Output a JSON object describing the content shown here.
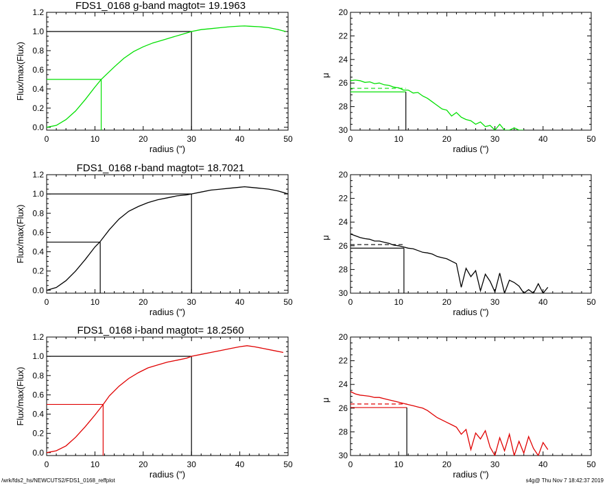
{
  "footer": {
    "path": "/wrk/fds2_hs/NEWCUTS2/FDS1_0168_reffplot",
    "stamp": "s4g@  Thu Nov  7 18:42:37 2019"
  },
  "colors": {
    "g": "#00e000",
    "r": "#000000",
    "i": "#e00000",
    "frame": "#000000"
  },
  "chart_data": [
    {
      "type": "line",
      "title": "FDS1_0168 g-band  magtot=     19.1963",
      "xlabel": "radius (\")",
      "ylabel": "Flux/max(Flux)",
      "xlim": [
        0,
        50
      ],
      "ylim": [
        -0.03,
        1.2
      ],
      "xticks": [
        "0",
        "10",
        "20",
        "30",
        "40",
        "50"
      ],
      "yticks": [
        "0.0",
        "0.2",
        "0.4",
        "0.6",
        "0.8",
        "1.0",
        "1.2"
      ],
      "series": [
        {
          "color": "#00e000",
          "x": [
            0,
            2,
            4,
            6,
            8,
            10,
            11.3,
            14,
            16,
            18,
            20,
            22,
            24,
            26,
            28,
            30,
            32,
            34,
            36,
            38,
            40,
            41,
            42,
            44,
            46,
            48,
            49.5
          ],
          "y": [
            0,
            0.02,
            0.08,
            0.17,
            0.29,
            0.42,
            0.5,
            0.63,
            0.72,
            0.79,
            0.84,
            0.88,
            0.91,
            0.94,
            0.97,
            1.0,
            1.02,
            1.03,
            1.04,
            1.05,
            1.056,
            1.058,
            1.055,
            1.05,
            1.04,
            1.02,
            1.0
          ]
        }
      ],
      "guides": {
        "r_half": 11.3,
        "r_total": 30,
        "y_half": 0.5,
        "y_total": 1.0
      }
    },
    {
      "type": "line",
      "xlabel": "radius (\")",
      "ylabel": "μ",
      "xlim": [
        0,
        50
      ],
      "ylim": [
        30,
        20
      ],
      "xticks": [
        "0",
        "10",
        "20",
        "30",
        "40",
        "50"
      ],
      "yticks": [
        "20",
        "22",
        "24",
        "26",
        "28",
        "30"
      ],
      "series": [
        {
          "color": "#00e000",
          "x": [
            0,
            1,
            2,
            3,
            4,
            5,
            6,
            7,
            8,
            9,
            10,
            11,
            12,
            13,
            14,
            15,
            16,
            17,
            18,
            19,
            20,
            21,
            22,
            23,
            24,
            25,
            26,
            27,
            28,
            29,
            30,
            31,
            32,
            33,
            34,
            35,
            36
          ],
          "y": [
            25.8,
            25.75,
            25.8,
            25.95,
            25.9,
            26.05,
            26.0,
            26.15,
            26.2,
            26.35,
            26.4,
            26.6,
            26.6,
            26.85,
            26.8,
            27.1,
            27.3,
            27.6,
            27.9,
            28.2,
            28.3,
            28.8,
            28.5,
            28.9,
            29.1,
            29.2,
            29.5,
            29.3,
            29.7,
            29.6,
            30.0,
            29.5,
            30.0,
            30.0,
            29.8,
            30.0,
            30.0
          ]
        }
      ],
      "guides": {
        "r_half": 11.5,
        "mu_eff": 26.75,
        "mu_mean": 26.45
      }
    },
    {
      "type": "line",
      "title": "FDS1_0168 r-band  magtot=     18.7021",
      "xlabel": "radius (\")",
      "ylabel": "Flux/max(Flux)",
      "xlim": [
        0,
        50
      ],
      "ylim": [
        -0.03,
        1.2
      ],
      "xticks": [
        "0",
        "10",
        "20",
        "30",
        "40",
        "50"
      ],
      "yticks": [
        "0.0",
        "0.2",
        "0.4",
        "0.6",
        "0.8",
        "1.0",
        "1.2"
      ],
      "series": [
        {
          "color": "#000000",
          "x": [
            0,
            2,
            4,
            6,
            8,
            10,
            11,
            13,
            15,
            17,
            19,
            21,
            23,
            25,
            27,
            29,
            30,
            32,
            34,
            36,
            38,
            40,
            41,
            42,
            44,
            46,
            48,
            50
          ],
          "y": [
            0,
            0.03,
            0.1,
            0.2,
            0.32,
            0.45,
            0.5,
            0.63,
            0.74,
            0.82,
            0.87,
            0.91,
            0.94,
            0.96,
            0.98,
            0.99,
            1.0,
            1.02,
            1.04,
            1.05,
            1.06,
            1.07,
            1.075,
            1.07,
            1.06,
            1.05,
            1.03,
            1.0
          ]
        }
      ],
      "guides": {
        "r_half": 11.1,
        "r_total": 30,
        "y_half": 0.5,
        "y_total": 1.0
      }
    },
    {
      "type": "line",
      "xlabel": "radius (\")",
      "ylabel": "μ",
      "xlim": [
        0,
        50
      ],
      "ylim": [
        30,
        20
      ],
      "xticks": [
        "0",
        "10",
        "20",
        "30",
        "40",
        "50"
      ],
      "yticks": [
        "20",
        "22",
        "24",
        "26",
        "28",
        "30"
      ],
      "series": [
        {
          "color": "#000000",
          "x": [
            0,
            1,
            2,
            3,
            4,
            5,
            6,
            7,
            8,
            9,
            10,
            11,
            12,
            13,
            14,
            15,
            16,
            17,
            18,
            19,
            20,
            21,
            22,
            23,
            24,
            25,
            26,
            27,
            28,
            29,
            30,
            31,
            32,
            33,
            34,
            35,
            36,
            37,
            38,
            39,
            40,
            41
          ],
          "y": [
            25.0,
            25.15,
            25.3,
            25.4,
            25.45,
            25.6,
            25.6,
            25.7,
            25.8,
            25.95,
            26.0,
            26.1,
            26.2,
            26.25,
            26.4,
            26.55,
            26.6,
            26.7,
            26.9,
            27.0,
            27.1,
            27.3,
            27.5,
            29.5,
            27.9,
            28.6,
            28.1,
            29.8,
            28.4,
            29.0,
            29.9,
            28.3,
            30.0,
            28.9,
            29.1,
            29.4,
            30.0,
            29.7,
            30.0,
            29.2,
            30.0,
            29.5
          ]
        }
      ],
      "guides": {
        "r_half": 11.1,
        "mu_eff": 26.2,
        "mu_mean": 25.9
      }
    },
    {
      "type": "line",
      "title": "FDS1_0168 i-band  magtot=     18.2560",
      "xlabel": "radius (\")",
      "ylabel": "Flux/max(Flux)",
      "xlim": [
        0,
        50
      ],
      "ylim": [
        -0.03,
        1.2
      ],
      "xticks": [
        "0",
        "10",
        "20",
        "30",
        "40",
        "50"
      ],
      "yticks": [
        "0.0",
        "0.2",
        "0.4",
        "0.6",
        "0.8",
        "1.0",
        "1.2"
      ],
      "series": [
        {
          "color": "#e00000",
          "x": [
            0,
            2,
            4,
            6,
            8,
            10,
            11.7,
            13,
            15,
            17,
            19,
            21,
            23,
            25,
            27,
            29,
            30,
            32,
            34,
            36,
            38,
            40,
            41.5,
            43,
            45,
            47,
            49
          ],
          "y": [
            0,
            0.02,
            0.07,
            0.16,
            0.27,
            0.39,
            0.5,
            0.59,
            0.69,
            0.77,
            0.83,
            0.88,
            0.91,
            0.94,
            0.96,
            0.98,
            1.0,
            1.02,
            1.04,
            1.06,
            1.08,
            1.1,
            1.11,
            1.1,
            1.08,
            1.06,
            1.04
          ]
        }
      ],
      "guides": {
        "r_half": 11.7,
        "r_total": 30,
        "y_half": 0.5,
        "y_total": 1.0
      }
    },
    {
      "type": "line",
      "xlabel": "radius (\")",
      "ylabel": "μ",
      "xlim": [
        0,
        50
      ],
      "ylim": [
        30,
        20
      ],
      "xticks": [
        "0",
        "10",
        "20",
        "30",
        "40",
        "50"
      ],
      "yticks": [
        "20",
        "22",
        "24",
        "26",
        "28",
        "30"
      ],
      "series": [
        {
          "color": "#e00000",
          "x": [
            0,
            1,
            2,
            3,
            4,
            5,
            6,
            7,
            8,
            9,
            10,
            11,
            12,
            13,
            14,
            15,
            16,
            17,
            18,
            19,
            20,
            21,
            22,
            23,
            24,
            25,
            26,
            27,
            28,
            29,
            30,
            31,
            32,
            33,
            34,
            35,
            36,
            37,
            38,
            39,
            40,
            41
          ],
          "y": [
            24.6,
            24.8,
            24.9,
            24.95,
            25.0,
            25.1,
            25.1,
            25.2,
            25.3,
            25.4,
            25.5,
            25.6,
            25.7,
            25.8,
            25.9,
            26.0,
            26.2,
            26.5,
            26.8,
            27.0,
            27.2,
            27.4,
            27.6,
            28.2,
            27.8,
            29.5,
            28.1,
            28.6,
            27.9,
            29.3,
            30.0,
            28.5,
            29.6,
            28.2,
            30.0,
            28.8,
            29.8,
            28.4,
            29.4,
            30.0,
            28.9,
            29.5
          ]
        }
      ],
      "guides": {
        "r_half": 11.7,
        "mu_eff": 25.95,
        "mu_mean": 25.65
      }
    }
  ]
}
